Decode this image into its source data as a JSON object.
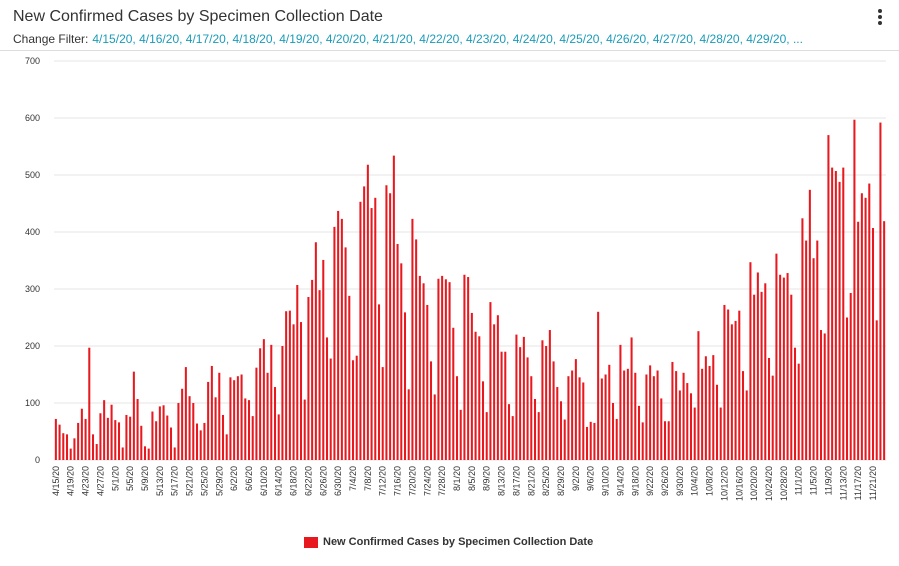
{
  "header": {
    "title": "New Confirmed Cases by Specimen Collection Date",
    "filter_label": "Change Filter:",
    "filter_values": "4/15/20, 4/16/20, 4/17/20, 4/18/20, 4/19/20, 4/20/20, 4/21/20, 4/22/20, 4/23/20, 4/24/20, 4/25/20, 4/26/20, 4/27/20, 4/28/20, 4/29/20, ..."
  },
  "icons": {
    "menu": "more-vertical-icon"
  },
  "colors": {
    "bar": "#e8191e",
    "filter_link": "#1a9bb8",
    "grid": "#e6e6e6"
  },
  "chart_data": {
    "type": "bar",
    "title": "New Confirmed Cases by Specimen Collection Date",
    "xlabel": "",
    "ylabel": "",
    "ylim": [
      0,
      700
    ],
    "yticks": [
      0,
      100,
      200,
      300,
      400,
      500,
      600,
      700
    ],
    "grid": true,
    "legend_position": "bottom-center",
    "x_start": "4/15/20",
    "x_tick_labels": [
      "4/15/20",
      "4/19/20",
      "4/23/20",
      "4/27/20",
      "5/1/20",
      "5/5/20",
      "5/9/20",
      "5/13/20",
      "5/17/20",
      "5/21/20",
      "5/25/20",
      "5/29/20",
      "6/2/20",
      "6/6/20",
      "6/10/20",
      "6/14/20",
      "6/18/20",
      "6/22/20",
      "6/26/20",
      "6/30/20",
      "7/4/20",
      "7/8/20",
      "7/12/20",
      "7/16/20",
      "7/20/20",
      "7/24/20",
      "7/28/20",
      "8/1/20",
      "8/5/20",
      "8/9/20",
      "8/13/20",
      "8/17/20",
      "8/21/20",
      "8/25/20",
      "8/29/20",
      "9/2/20",
      "9/6/20",
      "9/10/20",
      "9/14/20",
      "9/18/20",
      "9/22/20",
      "9/26/20",
      "9/30/20",
      "10/4/20",
      "10/8/20",
      "10/12/20",
      "10/16/20",
      "10/20/20",
      "10/24/20",
      "10/28/20",
      "11/1/20",
      "11/5/20",
      "11/9/20",
      "11/13/20",
      "11/17/20",
      "11/21/20"
    ],
    "series": [
      {
        "name": "New Confirmed Cases by Specimen Collection Date",
        "values": [
          72,
          62,
          47,
          45,
          20,
          38,
          65,
          90,
          72,
          197,
          45,
          28,
          82,
          105,
          74,
          97,
          70,
          66,
          22,
          79,
          76,
          155,
          107,
          60,
          24,
          20,
          85,
          68,
          94,
          96,
          78,
          57,
          22,
          100,
          125,
          163,
          112,
          100,
          64,
          52,
          65,
          137,
          165,
          110,
          153,
          79,
          45,
          145,
          140,
          147,
          150,
          108,
          105,
          77,
          162,
          196,
          212,
          153,
          202,
          128,
          80,
          200,
          261,
          262,
          238,
          307,
          242,
          106,
          286,
          316,
          382,
          298,
          351,
          215,
          178,
          409,
          437,
          423,
          373,
          288,
          175,
          183,
          453,
          480,
          518,
          442,
          460,
          273,
          163,
          482,
          468,
          534,
          379,
          345,
          259,
          124,
          423,
          387,
          323,
          310,
          272,
          173,
          115,
          318,
          323,
          317,
          312,
          232,
          147,
          88,
          325,
          321,
          258,
          225,
          217,
          138,
          84,
          277,
          238,
          254,
          190,
          190,
          98,
          77,
          220,
          198,
          216,
          180,
          147,
          107,
          84,
          210,
          200,
          228,
          173,
          128,
          103,
          71,
          147,
          157,
          177,
          145,
          136,
          58,
          67,
          65,
          260,
          143,
          150,
          167,
          100,
          72,
          202,
          157,
          160,
          215,
          153,
          95,
          66,
          150,
          166,
          147,
          157,
          108,
          68,
          68,
          172,
          156,
          122,
          153,
          135,
          117,
          92,
          226,
          160,
          182,
          165,
          184,
          132,
          92,
          272,
          264,
          238,
          244,
          262,
          156,
          122,
          347,
          290,
          329,
          295,
          310,
          179,
          148,
          362,
          325,
          320,
          328,
          290,
          197,
          169,
          424,
          385,
          474,
          354,
          385,
          228,
          222,
          570,
          513,
          507,
          488,
          513,
          250,
          293,
          597,
          418,
          468,
          460,
          485,
          407,
          245,
          592,
          419
        ]
      }
    ]
  },
  "legend": {
    "label": "New Confirmed Cases by Specimen Collection Date"
  }
}
